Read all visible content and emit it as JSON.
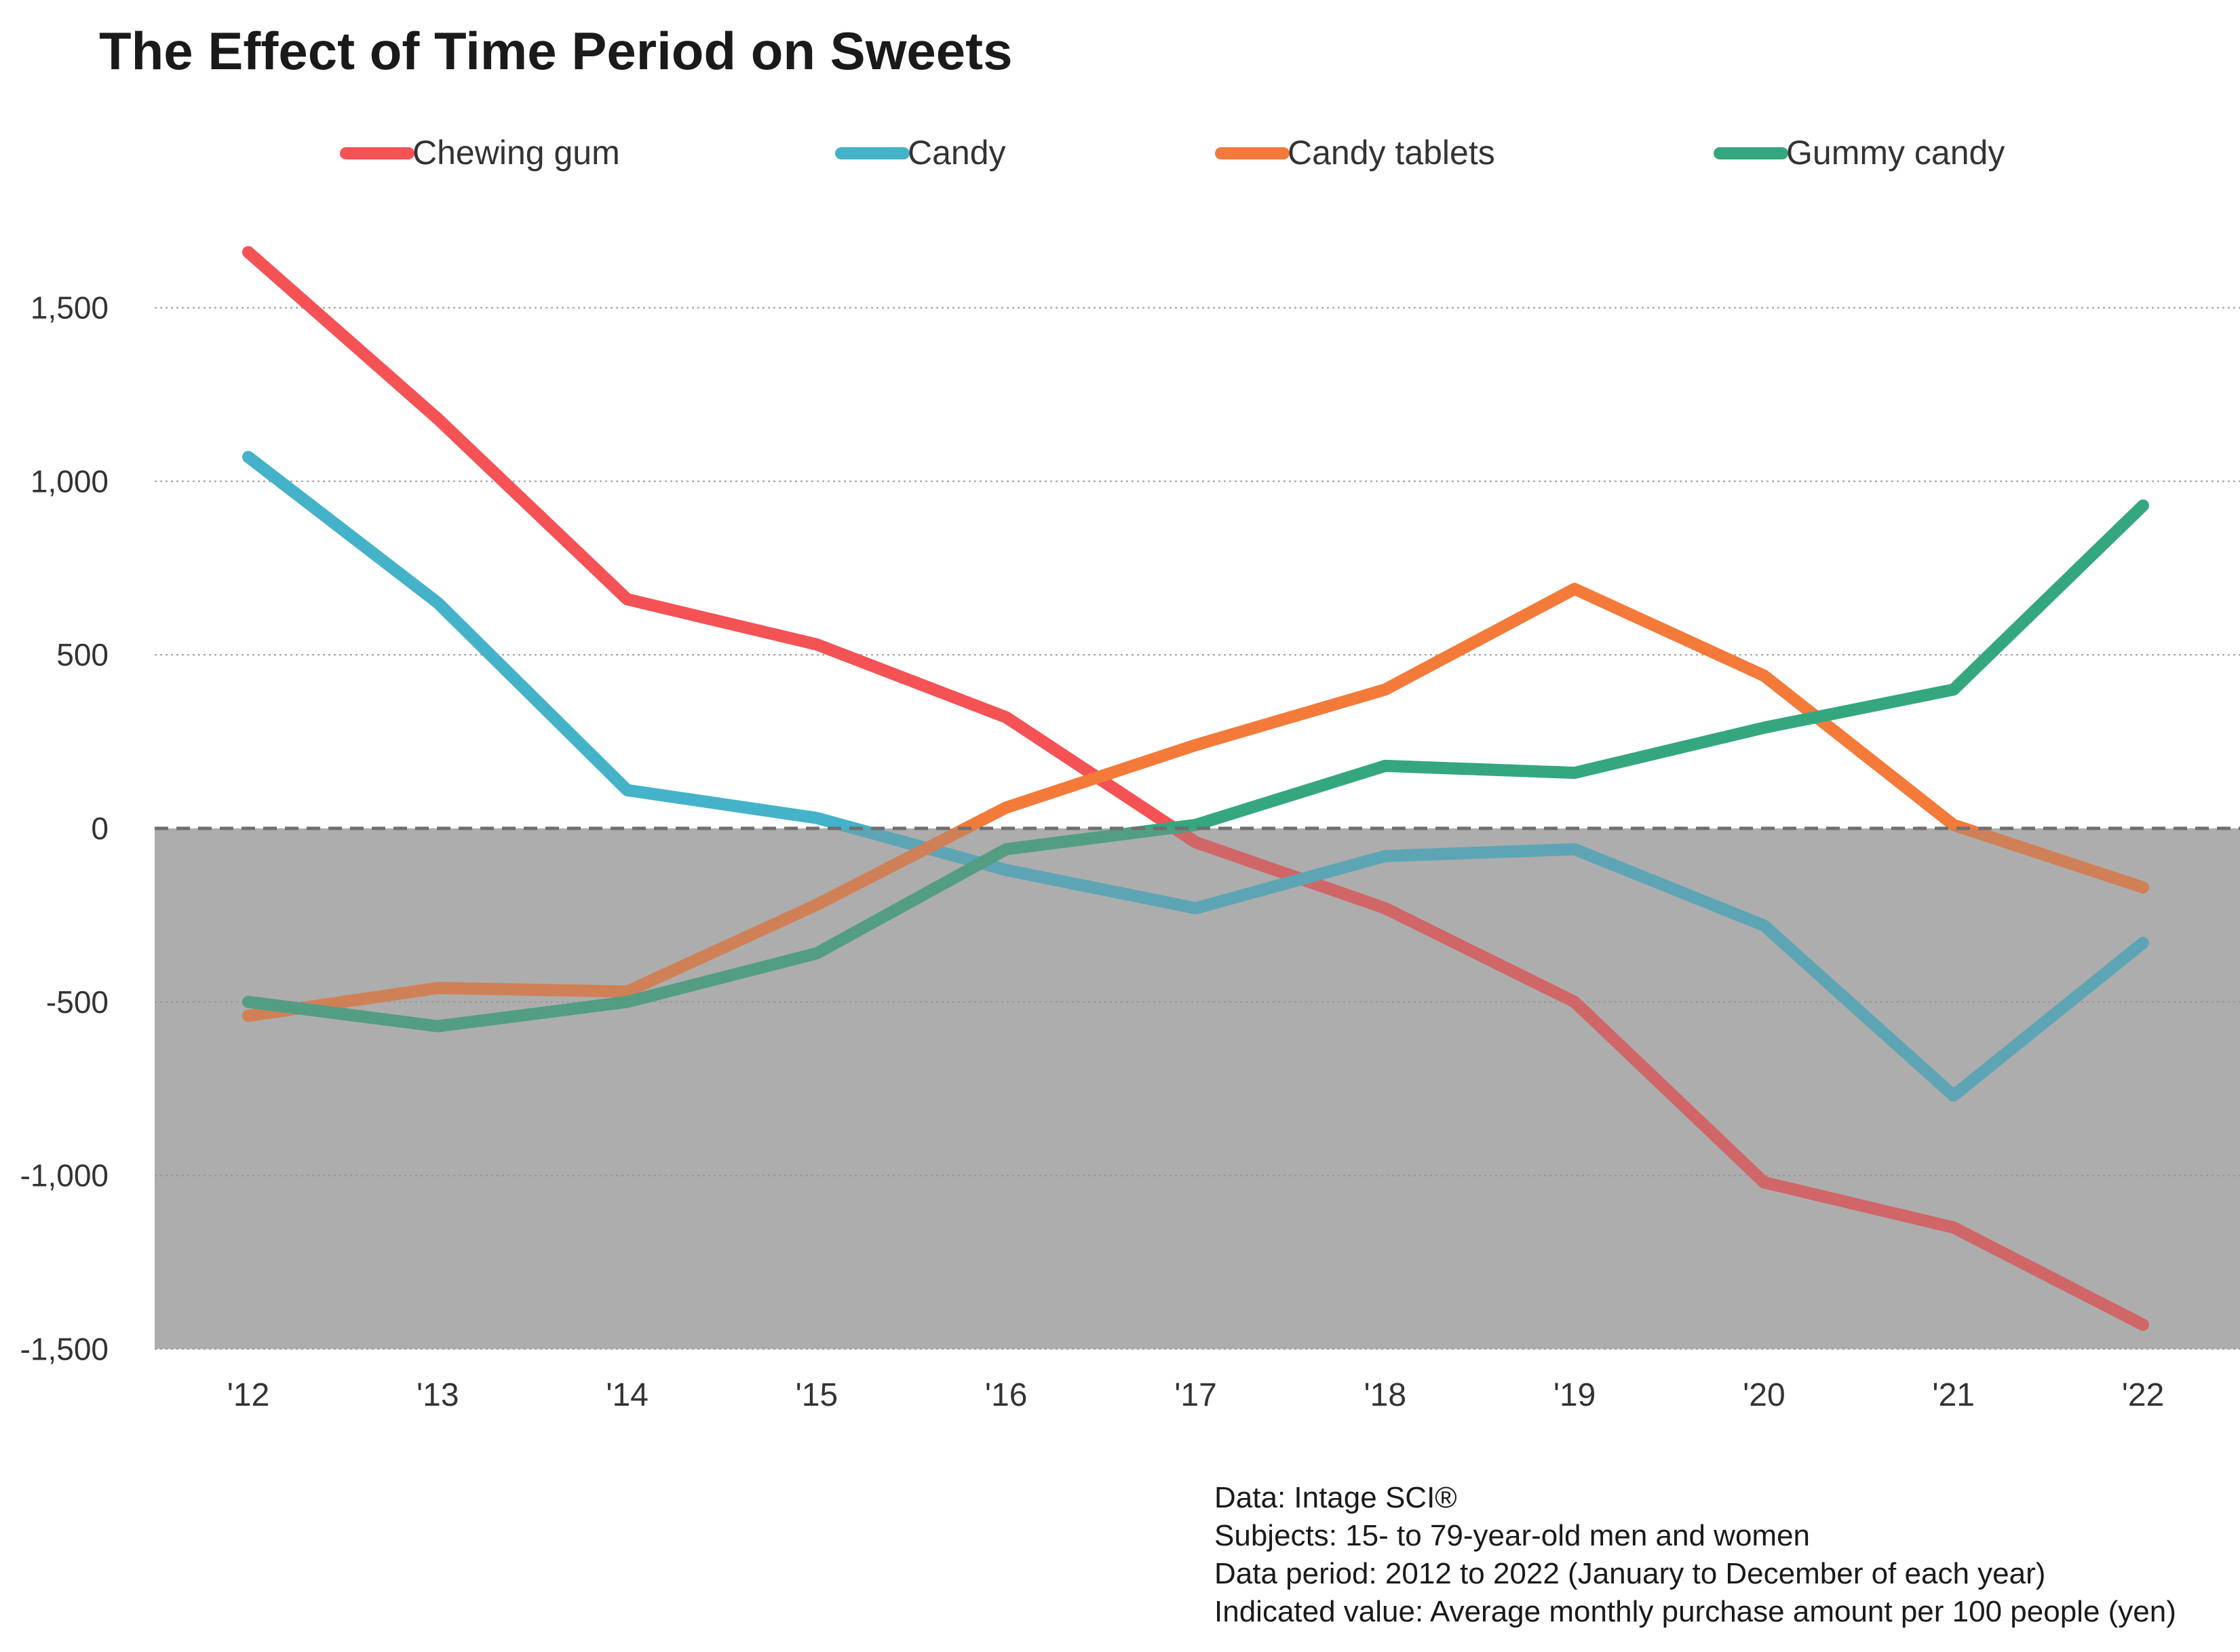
{
  "chart_data": {
    "type": "line",
    "title": "The Effect of Time Period on Sweets",
    "xlabel": "",
    "ylabel": "",
    "categories": [
      "'12",
      "'13",
      "'14",
      "'15",
      "'16",
      "'17",
      "'18",
      "'19",
      "'20",
      "'21",
      "'22"
    ],
    "yticks": [
      1500,
      1000,
      500,
      0,
      -500,
      -1000,
      -1500
    ],
    "ytick_labels": [
      "1,500",
      "1,000",
      "500",
      "0",
      "-500",
      "-1,000",
      "-1,500"
    ],
    "ylim": [
      -1500,
      1800
    ],
    "grid": "horizontal dotted",
    "legend_position": "top",
    "negative_region_shaded": true,
    "zero_line": "dashed",
    "series": [
      {
        "name": "Chewing gum",
        "color": "#f45254",
        "values": [
          1660,
          1180,
          660,
          530,
          320,
          -40,
          -230,
          -500,
          -1020,
          -1150,
          -1430
        ]
      },
      {
        "name": "Candy",
        "color": "#44b3c9",
        "values": [
          1070,
          650,
          110,
          30,
          -120,
          -230,
          -80,
          -60,
          -280,
          -770,
          -330
        ]
      },
      {
        "name": "Candy tablets",
        "color": "#f47a3a",
        "values": [
          -540,
          -460,
          -470,
          -220,
          60,
          240,
          400,
          690,
          440,
          10,
          -170
        ]
      },
      {
        "name": "Gummy candy",
        "color": "#35a77f",
        "values": [
          -500,
          -570,
          -500,
          -360,
          -60,
          10,
          180,
          160,
          290,
          400,
          930
        ]
      }
    ]
  },
  "notes": [
    "Data: Intage SCI®",
    "Subjects: 15- to 79-year-old men and women",
    "Data period: 2012 to 2022 (January to December of each year)",
    "Indicated value: Average monthly purchase amount per 100 people (yen)"
  ]
}
